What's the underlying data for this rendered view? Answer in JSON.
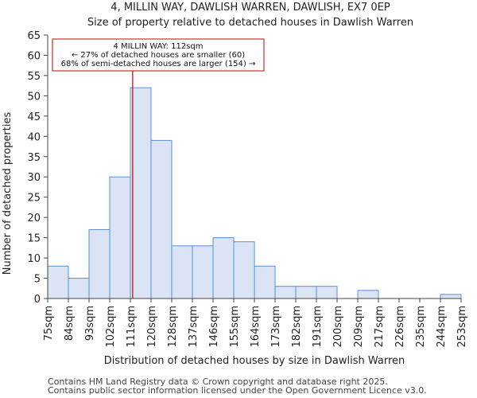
{
  "chart_data": {
    "type": "bar",
    "title": "4, MILLIN WAY, DAWLISH WARREN, DAWLISH, EX7 0EP",
    "subtitle": "Size of property relative to detached houses in Dawlish Warren",
    "xlabel": "Distribution of detached houses by size in Dawlish Warren",
    "ylabel": "Number of detached properties",
    "bin_edges": [
      75,
      84,
      93,
      102,
      111,
      120,
      128,
      137,
      146,
      155,
      164,
      173,
      182,
      191,
      200,
      209,
      217,
      226,
      235,
      244,
      253
    ],
    "tick_labels": [
      "75sqm",
      "84sqm",
      "93sqm",
      "102sqm",
      "111sqm",
      "120sqm",
      "128sqm",
      "137sqm",
      "146sqm",
      "155sqm",
      "164sqm",
      "173sqm",
      "182sqm",
      "191sqm",
      "200sqm",
      "209sqm",
      "217sqm",
      "226sqm",
      "235sqm",
      "244sqm",
      "253sqm"
    ],
    "values": [
      8,
      5,
      17,
      30,
      52,
      39,
      13,
      13,
      15,
      14,
      8,
      3,
      3,
      3,
      0,
      2,
      0,
      0,
      0,
      1
    ],
    "ylim": [
      0,
      65
    ],
    "yticks": [
      0,
      5,
      10,
      15,
      20,
      25,
      30,
      35,
      40,
      45,
      50,
      55,
      60,
      65
    ],
    "bar_fill": "#dae4f4",
    "bar_edge": "#5b8fd6",
    "marker": {
      "value": 112,
      "color": "#cc0000",
      "lines": [
        "4 MILLIN WAY: 112sqm",
        "← 27% of detached houses are smaller (60)",
        "68% of semi-detached houses are larger (154) →"
      ]
    }
  },
  "footer": {
    "line1": "Contains HM Land Registry data © Crown copyright and database right 2025.",
    "line2": "Contains public sector information licensed under the Open Government Licence v3.0."
  }
}
